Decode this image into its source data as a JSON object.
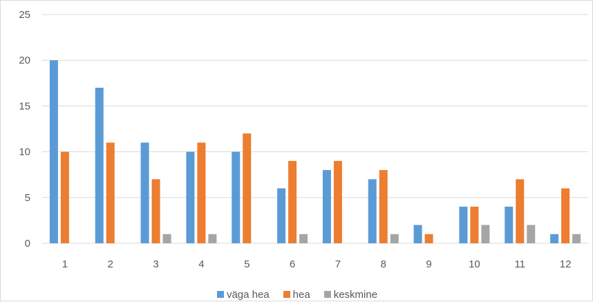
{
  "chart_data": {
    "type": "bar",
    "categories": [
      "1",
      "2",
      "3",
      "4",
      "5",
      "6",
      "7",
      "8",
      "9",
      "10",
      "11",
      "12"
    ],
    "series": [
      {
        "name": "väga hea",
        "color": "#5b9bd5",
        "values": [
          20,
          17,
          11,
          10,
          10,
          6,
          8,
          7,
          2,
          4,
          4,
          1
        ]
      },
      {
        "name": "hea",
        "color": "#ed7d31",
        "values": [
          10,
          11,
          7,
          11,
          12,
          9,
          9,
          8,
          1,
          4,
          7,
          6
        ]
      },
      {
        "name": "keskmine",
        "color": "#a5a5a5",
        "values": [
          0,
          0,
          1,
          1,
          0,
          1,
          0,
          1,
          0,
          2,
          2,
          1
        ]
      }
    ],
    "yticks": [
      "0",
      "5",
      "10",
      "15",
      "20",
      "25"
    ],
    "ylim": [
      0,
      25
    ],
    "grid": true,
    "legend_position": "bottom",
    "gridline_color": "#d9d9d9",
    "axis_line_color": "#d9d9d9"
  }
}
